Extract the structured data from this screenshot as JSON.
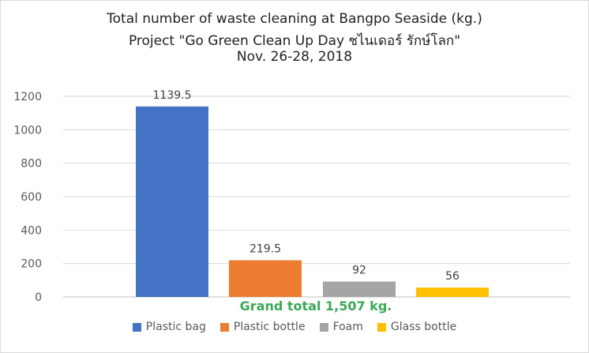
{
  "chart_data": {
    "type": "bar",
    "title_lines": [
      "Total number of waste cleaning at Bangpo Seaside (kg.)",
      "Project \"Go Green Clean Up Day ชไนเดอร์ รักษ์โลก\"",
      "Nov. 26-28, 2018"
    ],
    "categories": [
      "Plastic bag",
      "Plastic bottle",
      "Foam",
      "Glass bottle"
    ],
    "values": [
      1139.5,
      219.5,
      92,
      56
    ],
    "data_labels": [
      "1139.5",
      "219.5",
      "92",
      "56"
    ],
    "colors": [
      "#4472c4",
      "#ed7d31",
      "#a5a5a5",
      "#ffc000"
    ],
    "ylim": [
      0,
      1200
    ],
    "yticks": [
      "0",
      "200",
      "400",
      "600",
      "800",
      "1000",
      "1200"
    ],
    "grid": true,
    "legend_position": "bottom",
    "annotation": "Grand total 1,507 kg.",
    "annotation_color": "#3aa856"
  }
}
